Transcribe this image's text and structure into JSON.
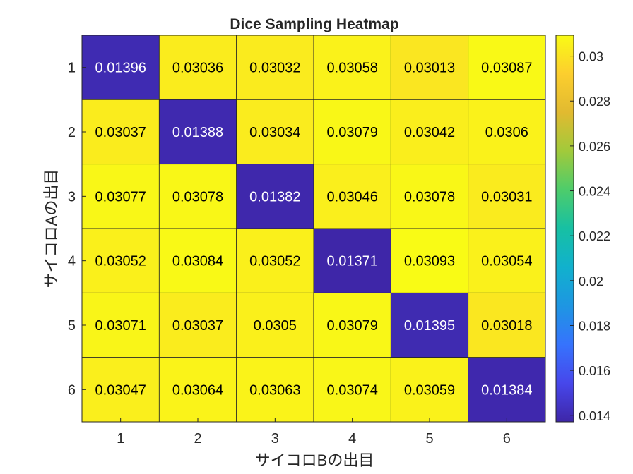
{
  "chart_data": {
    "type": "heatmap",
    "title": "Dice Sampling Heatmap",
    "xlabel": "サイコロBの出目",
    "ylabel": "サイコロAの出目",
    "x_categories": [
      "1",
      "2",
      "3",
      "4",
      "5",
      "6"
    ],
    "y_categories": [
      "1",
      "2",
      "3",
      "4",
      "5",
      "6"
    ],
    "values": [
      [
        0.01396,
        0.03036,
        0.03032,
        0.03058,
        0.03013,
        0.03087
      ],
      [
        0.03037,
        0.01388,
        0.03034,
        0.03079,
        0.03042,
        0.0306
      ],
      [
        0.03077,
        0.03078,
        0.01382,
        0.03046,
        0.03078,
        0.03031
      ],
      [
        0.03052,
        0.03084,
        0.03052,
        0.01371,
        0.03093,
        0.03054
      ],
      [
        0.03071,
        0.03037,
        0.0305,
        0.03079,
        0.01395,
        0.03018
      ],
      [
        0.03047,
        0.03064,
        0.03063,
        0.03074,
        0.03059,
        0.01384
      ]
    ],
    "colorbar": {
      "colormap": "parula",
      "range": [
        0.01371,
        0.03093
      ],
      "ticks": [
        0.014,
        0.016,
        0.018,
        0.02,
        0.022,
        0.024,
        0.026,
        0.028,
        0.03
      ],
      "tick_labels": [
        "0.014",
        "0.016",
        "0.018",
        "0.02",
        "0.022",
        "0.024",
        "0.026",
        "0.028",
        "0.03"
      ],
      "placement": "right"
    },
    "grid": true
  }
}
